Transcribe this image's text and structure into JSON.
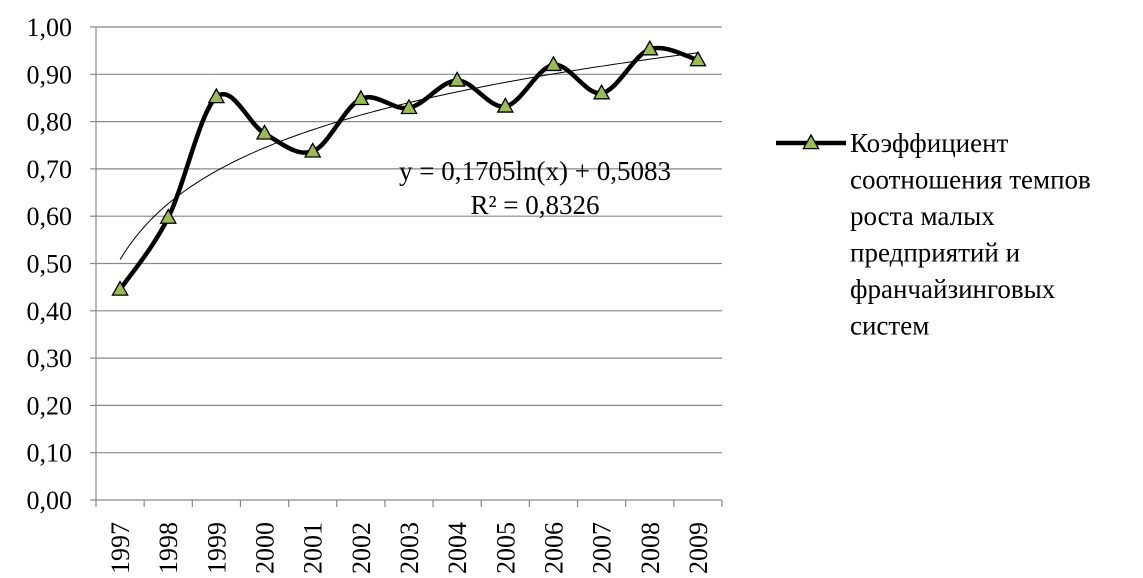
{
  "chart_data": {
    "type": "line",
    "title": "",
    "xlabel": "",
    "ylabel": "",
    "categories": [
      "1997",
      "1998",
      "1999",
      "2000",
      "2001",
      "2002",
      "2003",
      "2004",
      "2005",
      "2006",
      "2007",
      "2008",
      "2009"
    ],
    "series": [
      {
        "name": "Коэффициент соотношения темпов роста малых предприятий и франчайзинговых систем",
        "legend_lines": [
          "Коэффициент",
          "соотношения темпов",
          "роста малых",
          "предприятий и",
          "франчайзинговых",
          "систем"
        ],
        "values": [
          0.445,
          0.597,
          0.852,
          0.775,
          0.737,
          0.848,
          0.829,
          0.887,
          0.832,
          0.92,
          0.86,
          0.953,
          0.93
        ],
        "color": "#000000",
        "marker_color": "#9bbb59",
        "smooth": true
      }
    ],
    "trendline": {
      "type": "logarithmic",
      "a": 0.1705,
      "b": 0.5083,
      "equation": "y = 0,1705ln(x) + 0,5083",
      "r_squared": "R² = 0,8326"
    },
    "y_ticks": [
      "0,00",
      "0,10",
      "0,20",
      "0,30",
      "0,40",
      "0,50",
      "0,60",
      "0,70",
      "0,80",
      "0,90",
      "1,00"
    ],
    "ylim": [
      0,
      1.0
    ],
    "grid": true,
    "legend_position": "right"
  }
}
